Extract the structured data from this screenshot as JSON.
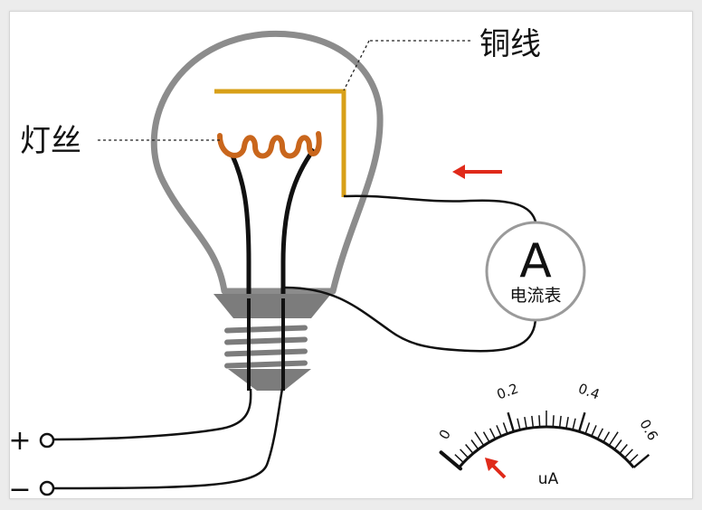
{
  "labels": {
    "copper_wire": "铜线",
    "filament": "灯丝",
    "ammeter_symbol": "A",
    "ammeter_name": "电流表",
    "plus_terminal": "+",
    "minus_terminal": "−"
  },
  "meter": {
    "ticks": [
      "0",
      "0.2",
      "0.4",
      "0.6"
    ],
    "unit": "uA",
    "needle_reading": 0
  },
  "colors": {
    "bulb_outline": "#8c8c8c",
    "copper": "#d8a018",
    "filament": "#c9661c",
    "wire": "#111111",
    "base": "#7c7c7c",
    "arrow": "#e02a1a"
  },
  "icons": {
    "current_arrow": "arrow-left-icon",
    "needle_arrow": "arrow-up-left-icon"
  }
}
